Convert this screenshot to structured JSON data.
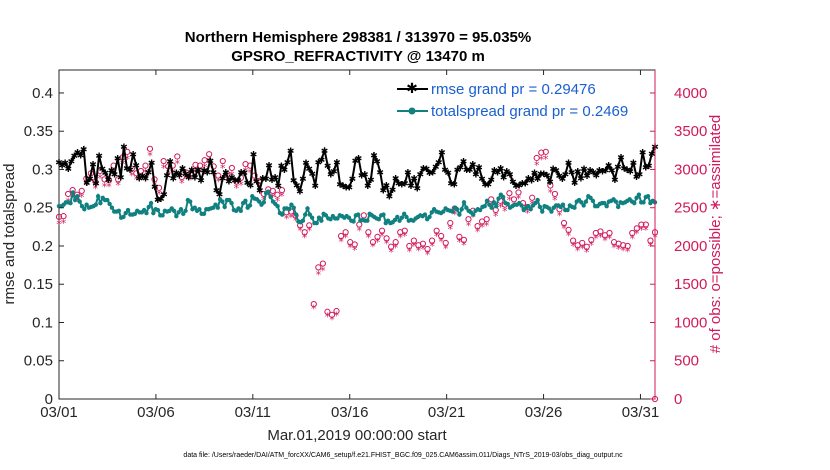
{
  "chart_data": {
    "type": "line",
    "title": "Northern Hemisphere 298381 / 313970 = 95.035%",
    "subtitle": "GPSRO_REFRACTIVITY @ 13470 m",
    "xlabel": "Mar.01,2019 00:00:00 start",
    "ylabel": "rmse and totalspread",
    "y2label": "# of obs: o=possible; ∗=assimilated",
    "footnote": "data file: /Users/raeder/DAI/ATM_forcXX/CAM6_setup/f.e21.FHIST_BGC.f09_025.CAM6assim.011/Diags_NTrS_2019-03/obs_diag_output.nc",
    "x_ticks": [
      "03/01",
      "03/06",
      "03/11",
      "03/16",
      "03/21",
      "03/26",
      "03/31"
    ],
    "x_tick_days": [
      0,
      5,
      10,
      15,
      20,
      25,
      30
    ],
    "xlim": [
      0,
      30.75
    ],
    "ylim": [
      0,
      0.43
    ],
    "y_ticks": [
      0,
      0.05,
      0.1,
      0.15,
      0.2,
      0.25,
      0.3,
      0.35,
      0.4
    ],
    "y_tick_labels": [
      "0",
      "0.05",
      "0.1",
      "0.15",
      "0.2",
      "0.25",
      "0.3",
      "0.35",
      "0.4"
    ],
    "y2lim": [
      0,
      4300
    ],
    "y2_ticks": [
      0,
      500,
      1000,
      1500,
      2000,
      2500,
      3000,
      3500,
      4000
    ],
    "y2_tick_labels": [
      "0",
      "500",
      "1000",
      "1500",
      "2000",
      "2500",
      "3000",
      "3500",
      "4000"
    ],
    "legend_position": "top-right",
    "series": [
      {
        "name": "rmse grand pr = 0.29476",
        "color": "#000000",
        "marker": "star",
        "axis": "left",
        "values": [
          0.31,
          0.306,
          0.309,
          0.301,
          0.311,
          0.318,
          0.323,
          0.319,
          0.327,
          0.283,
          0.288,
          0.307,
          0.282,
          0.318,
          0.301,
          0.296,
          0.287,
          0.299,
          0.294,
          0.315,
          0.29,
          0.33,
          0.302,
          0.3,
          0.32,
          0.306,
          0.289,
          0.292,
          0.289,
          0.297,
          0.309,
          0.278,
          0.261,
          0.262,
          0.268,
          0.293,
          0.311,
          0.289,
          0.296,
          0.293,
          0.302,
          0.295,
          0.29,
          0.3,
          0.29,
          0.3,
          0.286,
          0.299,
          0.297,
          0.312,
          0.297,
          0.273,
          0.268,
          0.289,
          0.297,
          0.285,
          0.29,
          0.286,
          0.286,
          0.297,
          0.296,
          0.283,
          0.28,
          0.32,
          0.285,
          0.273,
          0.289,
          0.288,
          0.306,
          0.287,
          0.29,
          0.279,
          0.305,
          0.3,
          0.31,
          0.325,
          0.286,
          0.28,
          0.272,
          0.288,
          0.309,
          0.301,
          0.295,
          0.279,
          0.31,
          0.313,
          0.325,
          0.305,
          0.294,
          0.298,
          0.31,
          0.281,
          0.279,
          0.277,
          0.277,
          0.288,
          0.312,
          0.315,
          0.293,
          0.294,
          0.279,
          0.287,
          0.319,
          0.311,
          0.297,
          0.273,
          0.28,
          0.265,
          0.274,
          0.289,
          0.282,
          0.281,
          0.282,
          0.297,
          0.279,
          0.289,
          0.276,
          0.294,
          0.302,
          0.301,
          0.296,
          0.297,
          0.304,
          0.31,
          0.323,
          0.3,
          0.296,
          0.282,
          0.281,
          0.3,
          0.303,
          0.311,
          0.3,
          0.3,
          0.307,
          0.294,
          0.303,
          0.288,
          0.281,
          0.281,
          0.287,
          0.299,
          0.297,
          0.302,
          0.29,
          0.298,
          0.294,
          0.284,
          0.279,
          0.28,
          0.282,
          0.282,
          0.289,
          0.286,
          0.296,
          0.288,
          0.295,
          0.295,
          0.293,
          0.284,
          0.301,
          0.299,
          0.292,
          0.288,
          0.294,
          0.309,
          0.297,
          0.283,
          0.298,
          0.289,
          0.301,
          0.292,
          0.299,
          0.297,
          0.293,
          0.299,
          0.298,
          0.299,
          0.306,
          0.299,
          0.287,
          0.304,
          0.316,
          0.302,
          0.3,
          0.298,
          0.309,
          0.291,
          0.294,
          0.323,
          0.303,
          0.305,
          0.321,
          0.33
        ]
      },
      {
        "name": "totalspread grand pr = 0.2469",
        "color": "#108080",
        "marker": "circle",
        "axis": "left",
        "values": [
          0.252,
          0.252,
          0.254,
          0.257,
          0.257,
          0.256,
          0.27,
          0.26,
          0.265,
          0.258,
          0.252,
          0.248,
          0.254,
          0.25,
          0.251,
          0.252,
          0.254,
          0.265,
          0.256,
          0.263,
          0.26,
          0.26,
          0.255,
          0.25,
          0.245,
          0.245,
          0.246,
          0.237,
          0.238,
          0.243,
          0.247,
          0.241,
          0.241,
          0.242,
          0.246,
          0.244,
          0.244,
          0.247,
          0.243,
          0.251,
          0.256,
          0.243,
          0.248,
          0.247,
          0.24,
          0.24,
          0.246,
          0.245,
          0.246,
          0.249,
          0.246,
          0.239,
          0.244,
          0.248,
          0.242,
          0.246,
          0.26,
          0.258,
          0.248,
          0.25,
          0.246,
          0.248,
          0.242,
          0.242,
          0.248,
          0.248,
          0.249,
          0.25,
          0.254,
          0.25,
          0.261,
          0.258,
          0.251,
          0.26,
          0.26,
          0.256,
          0.247,
          0.246,
          0.249,
          0.246,
          0.256,
          0.259,
          0.25,
          0.253,
          0.265,
          0.262,
          0.261,
          0.258,
          0.254,
          0.257,
          0.269,
          0.271,
          0.264,
          0.258,
          0.255,
          0.252,
          0.243,
          0.241,
          0.249,
          0.249,
          0.248,
          0.254,
          0.25,
          0.241,
          0.232,
          0.231,
          0.233,
          0.241,
          0.249,
          0.241,
          0.237,
          0.23,
          0.23,
          0.237,
          0.233,
          0.242,
          0.24,
          0.236,
          0.235,
          0.239,
          0.236,
          0.236,
          0.24,
          0.239,
          0.237,
          0.239,
          0.237,
          0.233,
          0.232,
          0.24,
          0.241,
          0.233,
          0.234,
          0.233,
          0.233,
          0.242,
          0.24,
          0.238,
          0.236,
          0.235,
          0.24,
          0.241,
          0.23,
          0.233,
          0.23,
          0.231,
          0.234,
          0.238,
          0.233,
          0.237,
          0.242,
          0.238,
          0.233,
          0.234,
          0.233,
          0.236,
          0.238,
          0.24,
          0.239,
          0.241,
          0.235,
          0.238,
          0.244,
          0.248,
          0.245,
          0.244,
          0.243,
          0.245,
          0.249,
          0.247,
          0.246,
          0.245,
          0.25,
          0.248,
          0.241,
          0.248,
          0.257,
          0.25,
          0.246,
          0.244,
          0.241,
          0.246,
          0.248,
          0.247,
          0.251,
          0.252,
          0.259,
          0.254,
          0.25,
          0.257,
          0.252,
          0.262,
          0.267,
          0.264,
          0.256,
          0.255,
          0.25,
          0.252,
          0.254,
          0.254,
          0.256,
          0.253,
          0.247,
          0.25,
          0.252,
          0.248,
          0.253,
          0.256,
          0.26,
          0.251,
          0.245,
          0.252,
          0.251,
          0.249,
          0.245,
          0.25,
          0.253,
          0.253,
          0.251,
          0.254,
          0.247,
          0.247,
          0.253,
          0.251,
          0.25,
          0.258,
          0.26,
          0.257,
          0.253,
          0.258,
          0.265,
          0.263,
          0.259,
          0.252,
          0.252,
          0.255,
          0.256,
          0.256,
          0.252,
          0.258,
          0.259,
          0.261,
          0.258,
          0.251,
          0.257,
          0.256,
          0.257,
          0.259,
          0.261,
          0.258,
          0.256,
          0.263,
          0.267,
          0.257,
          0.257,
          0.264,
          0.265,
          0.256,
          0.259,
          0.257
        ]
      },
      {
        "name": "# possible obs",
        "color": "#d11a5c",
        "marker": "open-circle",
        "axis": "right",
        "values": [
          2380,
          2390,
          2680,
          2730,
          2670,
          2720,
          2880,
          2950,
          2840,
          2980,
          2870,
          2860,
          3050,
          2870,
          3160,
          3230,
          3010,
          2950,
          2980,
          3050,
          3270,
          2870,
          2760,
          3110,
          3040,
          3050,
          3170,
          2900,
          2960,
          2950,
          3060,
          3050,
          3120,
          3200,
          3040,
          2920,
          3110,
          2940,
          3020,
          2840,
          2890,
          3070,
          3050,
          2920,
          2850,
          2680,
          2740,
          2720,
          2670,
          2730,
          2440,
          2450,
          2400,
          2270,
          2180,
          2270,
          1240,
          1720,
          1770,
          1140,
          1100,
          1150,
          2130,
          2180,
          2050,
          2020,
          2280,
          2400,
          2180,
          2050,
          2120,
          2200,
          2100,
          1990,
          2050,
          2180,
          2200,
          2000,
          2070,
          2010,
          2030,
          1960,
          2070,
          2200,
          2130,
          2040,
          2300,
          2490,
          2120,
          2080,
          2350,
          2460,
          2260,
          2320,
          2350,
          2610,
          2470,
          2590,
          2540,
          2690,
          2610,
          2700,
          2560,
          2510,
          2630,
          3150,
          3220,
          3230,
          2790,
          2680,
          2480,
          2300,
          2210,
          2070,
          2010,
          2040,
          1990,
          2080,
          2170,
          2190,
          2140,
          2170,
          2050,
          2030,
          2010,
          2000,
          2170,
          2230,
          2280,
          2280,
          2070,
          2180
        ]
      },
      {
        "name": "# assimilated obs",
        "color": "#d11a5c",
        "marker": "asterisk",
        "axis": "right",
        "values": [
          2290,
          2300,
          2580,
          2640,
          2590,
          2640,
          2800,
          2860,
          2750,
          2890,
          2780,
          2780,
          2960,
          2800,
          3070,
          3140,
          2920,
          2870,
          2890,
          2960,
          3180,
          2790,
          2680,
          3020,
          2950,
          2960,
          3080,
          2820,
          2880,
          2870,
          2970,
          2960,
          3030,
          3110,
          2950,
          2840,
          3020,
          2860,
          2930,
          2760,
          2800,
          2980,
          2960,
          2840,
          2770,
          2600,
          2660,
          2640,
          2590,
          2650,
          2360,
          2370,
          2330,
          2200,
          2110,
          2200,
          1180,
          1630,
          1680,
          1080,
          1040,
          1090,
          2060,
          2110,
          1980,
          1950,
          2200,
          2320,
          2110,
          1990,
          2050,
          2130,
          2030,
          1920,
          1980,
          2110,
          2130,
          1930,
          2000,
          1940,
          1960,
          1890,
          2000,
          2130,
          2060,
          1970,
          2220,
          2410,
          2050,
          2010,
          2270,
          2380,
          2190,
          2250,
          2270,
          2530,
          2390,
          2510,
          2460,
          2600,
          2530,
          2620,
          2480,
          2430,
          2550,
          3060,
          3130,
          3140,
          2700,
          2600,
          2400,
          2230,
          2140,
          2000,
          1940,
          1970,
          1920,
          2010,
          2100,
          2120,
          2070,
          2100,
          1980,
          1960,
          1940,
          1930,
          2100,
          2160,
          2210,
          2210,
          2000,
          2110
        ]
      }
    ]
  }
}
